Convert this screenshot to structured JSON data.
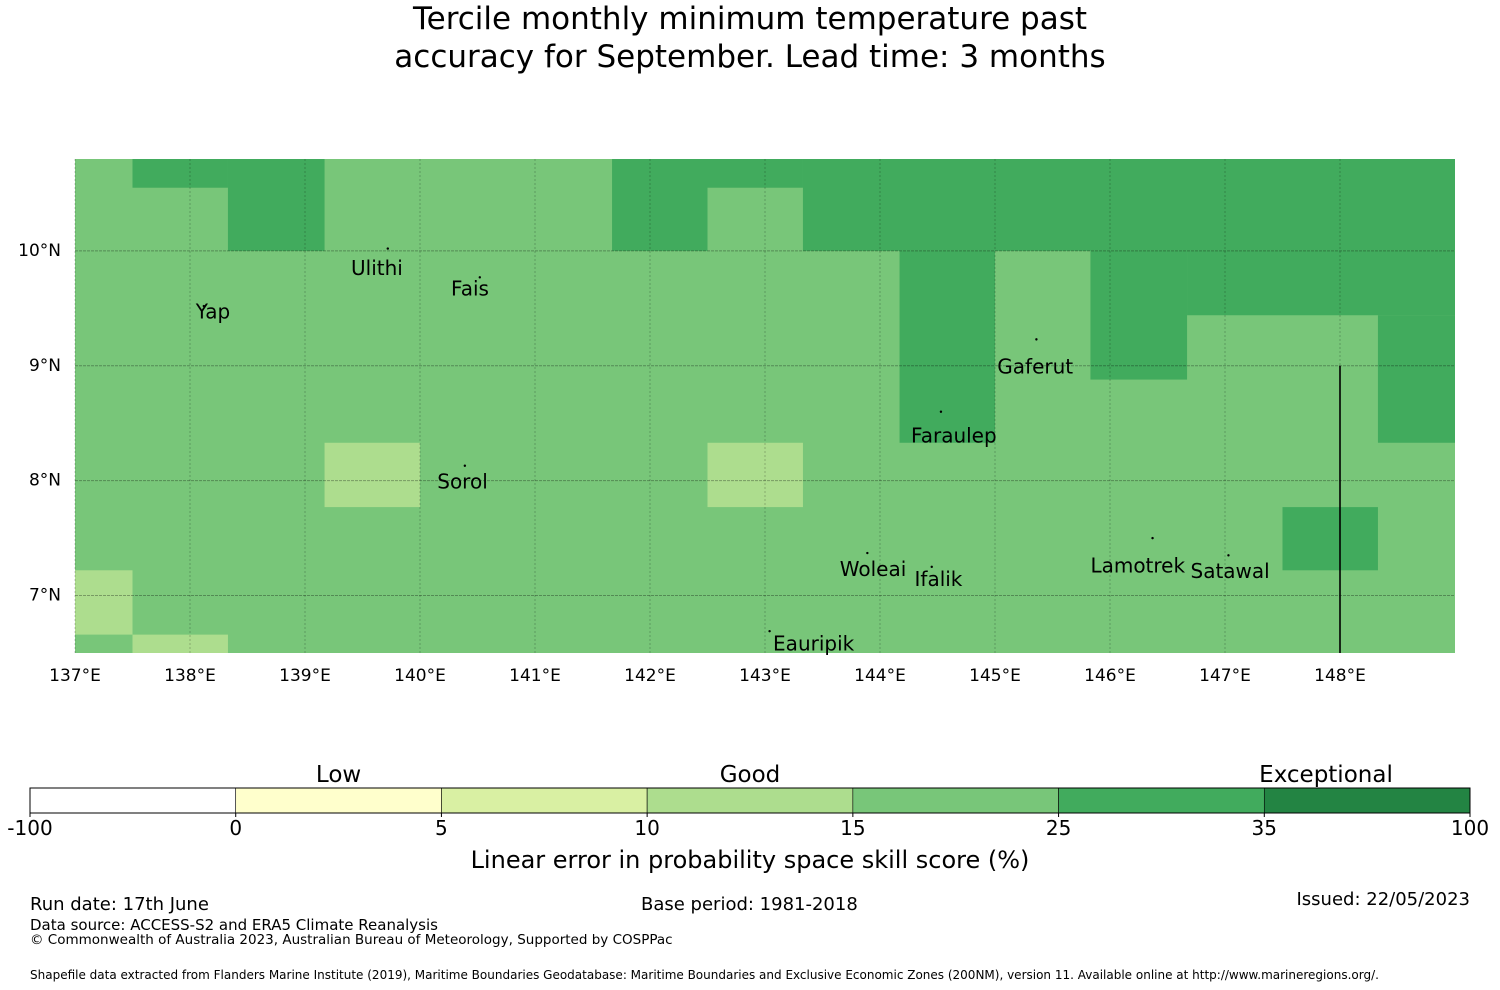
{
  "title": {
    "line1": "Tercile monthly minimum temperature past",
    "line2": "accuracy for September. Lead time: 3 months"
  },
  "map": {
    "lon_range": [
      137.0,
      149.0
    ],
    "lat_range": [
      6.5,
      10.8
    ],
    "lon_ticks": [
      {
        "value": 137,
        "label": "137°E"
      },
      {
        "value": 138,
        "label": "138°E"
      },
      {
        "value": 139,
        "label": "139°E"
      },
      {
        "value": 140,
        "label": "140°E"
      },
      {
        "value": 141,
        "label": "141°E"
      },
      {
        "value": 142,
        "label": "142°E"
      },
      {
        "value": 143,
        "label": "143°E"
      },
      {
        "value": 144,
        "label": "144°E"
      },
      {
        "value": 145,
        "label": "145°E"
      },
      {
        "value": 146,
        "label": "146°E"
      },
      {
        "value": 147,
        "label": "147°E"
      },
      {
        "value": 148,
        "label": "148°E"
      }
    ],
    "lat_ticks": [
      {
        "value": 10,
        "label": "10°N"
      },
      {
        "value": 9,
        "label": "9°N"
      },
      {
        "value": 8,
        "label": "8°N"
      },
      {
        "value": 7,
        "label": "7°N"
      }
    ],
    "base_category": "good_15_25",
    "cells": [
      {
        "lon": [
          137.5,
          138.33
        ],
        "lat": [
          10.55,
          10.8
        ],
        "category": "exc_25_35"
      },
      {
        "lon": [
          138.33,
          139.17
        ],
        "lat": [
          10.0,
          10.8
        ],
        "category": "exc_25_35"
      },
      {
        "lon": [
          141.67,
          142.5
        ],
        "lat": [
          10.0,
          10.8
        ],
        "category": "exc_25_35"
      },
      {
        "lon": [
          142.5,
          143.33
        ],
        "lat": [
          10.55,
          10.8
        ],
        "category": "exc_25_35"
      },
      {
        "lon": [
          143.33,
          149.0
        ],
        "lat": [
          10.0,
          10.8
        ],
        "category": "exc_25_35"
      },
      {
        "lon": [
          144.17,
          145.0
        ],
        "lat": [
          8.33,
          10.0
        ],
        "category": "exc_25_35"
      },
      {
        "lon": [
          145.83,
          146.67
        ],
        "lat": [
          8.88,
          10.0
        ],
        "category": "exc_25_35"
      },
      {
        "lon": [
          146.67,
          149.0
        ],
        "lat": [
          9.44,
          10.0
        ],
        "category": "exc_25_35"
      },
      {
        "lon": [
          148.33,
          149.0
        ],
        "lat": [
          8.33,
          9.44
        ],
        "category": "exc_25_35"
      },
      {
        "lon": [
          147.5,
          148.33
        ],
        "lat": [
          7.22,
          7.77
        ],
        "category": "exc_25_35"
      },
      {
        "lon": [
          139.17,
          140.0
        ],
        "lat": [
          7.77,
          8.33
        ],
        "category": "good_10_15"
      },
      {
        "lon": [
          142.5,
          143.33
        ],
        "lat": [
          7.77,
          8.33
        ],
        "category": "good_10_15"
      },
      {
        "lon": [
          137.0,
          137.5
        ],
        "lat": [
          6.66,
          7.22
        ],
        "category": "good_10_15"
      },
      {
        "lon": [
          137.5,
          138.33
        ],
        "lat": [
          6.5,
          6.66
        ],
        "category": "good_10_15"
      }
    ],
    "eez_line": {
      "lon": 148.0,
      "lat": [
        6.5,
        9.0
      ]
    },
    "islands": [
      {
        "name": "Ulithi",
        "lon": 139.72,
        "lat": 10.02,
        "label_lon": 139.4,
        "label_lat": 9.84
      },
      {
        "name": "Fais",
        "lon": 140.52,
        "lat": 9.77,
        "label_lon": 140.27,
        "label_lat": 9.66
      },
      {
        "name": "Yap",
        "lon": 138.12,
        "lat": 9.52,
        "label_lon": 138.05,
        "label_lat": 9.46
      },
      {
        "name": "Gaferut",
        "lon": 145.36,
        "lat": 9.23,
        "label_lon": 145.02,
        "label_lat": 8.98
      },
      {
        "name": "Faraulep",
        "lon": 144.53,
        "lat": 8.6,
        "label_lon": 144.27,
        "label_lat": 8.38
      },
      {
        "name": "Sorol",
        "lon": 140.39,
        "lat": 8.13,
        "label_lon": 140.15,
        "label_lat": 7.98
      },
      {
        "name": "Woleai",
        "lon": 143.89,
        "lat": 7.37,
        "label_lon": 143.65,
        "label_lat": 7.22
      },
      {
        "name": "Ifalik",
        "lon": 144.45,
        "lat": 7.25,
        "label_lon": 144.3,
        "label_lat": 7.13
      },
      {
        "name": "Lamotrek",
        "lon": 146.37,
        "lat": 7.5,
        "label_lon": 145.83,
        "label_lat": 7.25
      },
      {
        "name": "Satawal",
        "lon": 147.03,
        "lat": 7.35,
        "label_lon": 146.7,
        "label_lat": 7.2
      },
      {
        "name": "Eauripik",
        "lon": 143.04,
        "lat": 6.69,
        "label_lon": 143.07,
        "label_lat": 6.57
      }
    ]
  },
  "colors": {
    "neg_0": "#ffffff",
    "low_0_5": "#ffffcc",
    "good_5_10": "#d9f0a3",
    "good_10_15": "#addd8e",
    "good_15_25": "#78c679",
    "exc_25_35": "#41ab5d",
    "exc_35_100": "#238443"
  },
  "colorbar": {
    "bins": [
      "neg_0",
      "low_0_5",
      "good_5_10",
      "good_10_15",
      "good_15_25",
      "exc_25_35",
      "exc_35_100"
    ],
    "tick_labels": [
      "-100",
      "0",
      "5",
      "10",
      "15",
      "25",
      "35",
      "100"
    ],
    "group_labels": [
      {
        "label": "Low",
        "center_bin": 1.5
      },
      {
        "label": "Good",
        "center_bin": 3.5
      },
      {
        "label": "Exceptional",
        "center_bin": 6.3
      }
    ],
    "axis_label": "Linear error in probability space skill score (%)"
  },
  "footer": {
    "run_date": "Run date: 17th June",
    "base_period": "Base period: 1981-2018",
    "issued": "Issued: 22/05/2023",
    "data_source": "Data source: ACCESS-S2 and ERA5 Climate Reanalysis",
    "copyright": "© Commonwealth of Australia 2023, Australian Bureau of Meteorology, Supported by COSPPac",
    "shapefile": "Shapefile data extracted from Flanders Marine Institute (2019), Maritime Boundaries Geodatabase: Maritime Boundaries and Exclusive Economic Zones (200NM), version 11. Available online at http://www.marineregions.org/."
  }
}
